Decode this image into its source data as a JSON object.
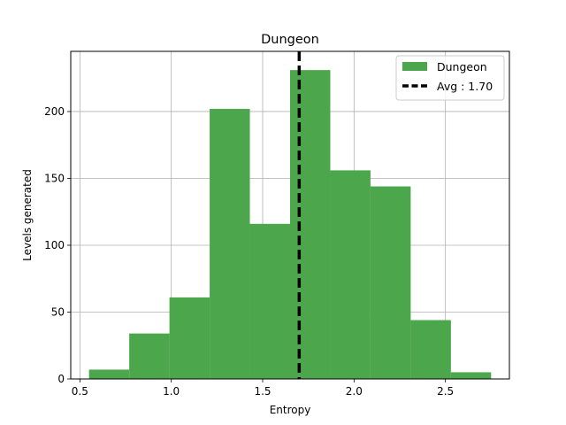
{
  "chart_data": {
    "type": "bar",
    "title": "Dungeon",
    "xlabel": "Entropy",
    "ylabel": "Levels generated",
    "xlim": [
      0.45,
      2.85
    ],
    "ylim": [
      0,
      245
    ],
    "xticks": [
      0.5,
      1.0,
      1.5,
      2.0,
      2.5
    ],
    "xtick_labels": [
      "0.5",
      "1.0",
      "1.5",
      "2.0",
      "2.5"
    ],
    "yticks": [
      0,
      50,
      100,
      150,
      200
    ],
    "ytick_labels": [
      "0",
      "50",
      "100",
      "150",
      "200"
    ],
    "grid": true,
    "legend_position": "top-right",
    "series": [
      {
        "name": "Dungeon",
        "color": "#4ca64c",
        "bins": [
          {
            "x0": 0.55,
            "x1": 0.77,
            "value": 7
          },
          {
            "x0": 0.77,
            "x1": 0.99,
            "value": 34
          },
          {
            "x0": 0.99,
            "x1": 1.21,
            "value": 61
          },
          {
            "x0": 1.21,
            "x1": 1.43,
            "value": 202
          },
          {
            "x0": 1.43,
            "x1": 1.65,
            "value": 116
          },
          {
            "x0": 1.65,
            "x1": 1.87,
            "value": 231
          },
          {
            "x0": 1.87,
            "x1": 2.09,
            "value": 156
          },
          {
            "x0": 2.09,
            "x1": 2.31,
            "value": 144
          },
          {
            "x0": 2.31,
            "x1": 2.53,
            "value": 44
          },
          {
            "x0": 2.53,
            "x1": 2.75,
            "value": 5
          }
        ]
      }
    ],
    "average": {
      "label": "Avg : 1.70",
      "value": 1.7,
      "color": "#000000"
    }
  }
}
